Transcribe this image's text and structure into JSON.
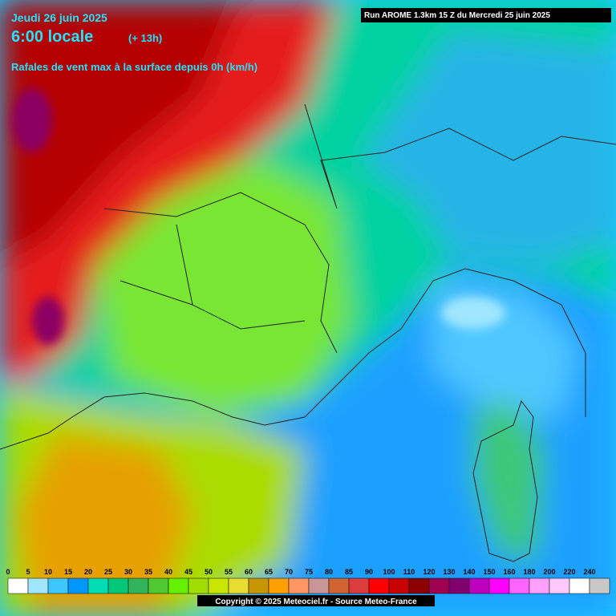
{
  "header": {
    "date": "Jeudi 26 juin 2025",
    "time": "6:00 locale",
    "offset": "(+ 13h)",
    "subtitle": "Rafales de vent max à la surface depuis 0h (km/h)",
    "run": "Run AROME 1.3km 15 Z du Mercredi 25 juin 2025"
  },
  "legend": {
    "items": [
      {
        "value": 0,
        "color": "#ffffff"
      },
      {
        "value": 5,
        "color": "#a0e6ff"
      },
      {
        "value": 10,
        "color": "#3cc8ff"
      },
      {
        "value": 15,
        "color": "#0096ff"
      },
      {
        "value": 20,
        "color": "#00dcb4"
      },
      {
        "value": 25,
        "color": "#00c878"
      },
      {
        "value": 30,
        "color": "#32b45a"
      },
      {
        "value": 35,
        "color": "#50c832"
      },
      {
        "value": 40,
        "color": "#64f000"
      },
      {
        "value": 45,
        "color": "#a0dc00"
      },
      {
        "value": 50,
        "color": "#c8e600"
      },
      {
        "value": 55,
        "color": "#e6dc32"
      },
      {
        "value": 60,
        "color": "#c89600"
      },
      {
        "value": 65,
        "color": "#ffa000"
      },
      {
        "value": 70,
        "color": "#ff9664"
      },
      {
        "value": 75,
        "color": "#c89696"
      },
      {
        "value": 80,
        "color": "#d26432"
      },
      {
        "value": 85,
        "color": "#dc3c3c"
      },
      {
        "value": 90,
        "color": "#ff0000"
      },
      {
        "value": 100,
        "color": "#c80000"
      },
      {
        "value": 110,
        "color": "#8c0000"
      },
      {
        "value": 120,
        "color": "#a00050"
      },
      {
        "value": 130,
        "color": "#82006e"
      },
      {
        "value": 140,
        "color": "#be00be"
      },
      {
        "value": 150,
        "color": "#ff00ff"
      },
      {
        "value": 160,
        "color": "#ff64ff"
      },
      {
        "value": 180,
        "color": "#ffa0ff"
      },
      {
        "value": 200,
        "color": "#ffc8ff"
      },
      {
        "value": 220,
        "color": "#ffffff"
      },
      {
        "value": 240,
        "color": "#c8c8c8"
      }
    ]
  },
  "footer": {
    "copyright": "Copyright © 2025 Meteociel.fr - Source Meteo-France"
  }
}
